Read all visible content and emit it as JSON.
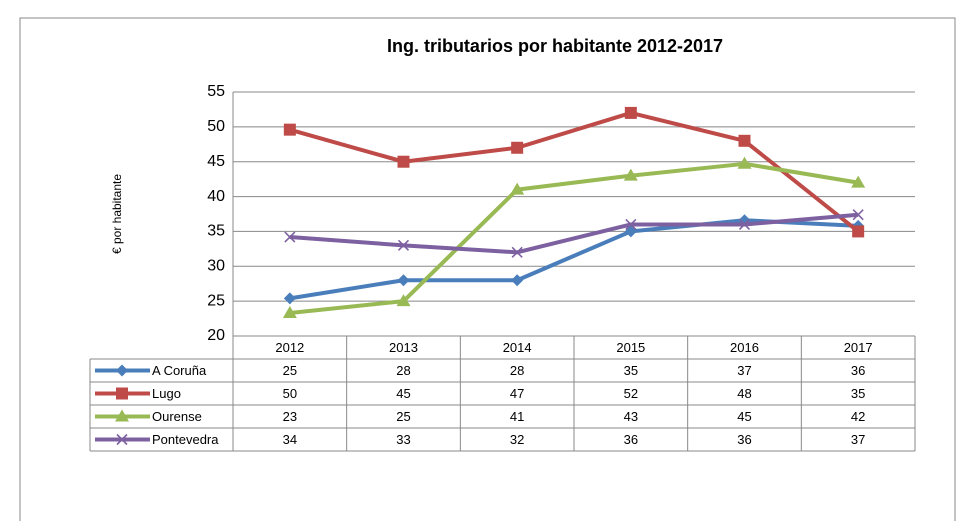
{
  "chart_data": {
    "type": "line",
    "title": "Ing. tributarios por habitante 2012-2017",
    "y_label": "€ por habitante",
    "categories": [
      "2012",
      "2013",
      "2014",
      "2015",
      "2016",
      "2017"
    ],
    "series": [
      {
        "name": "A Coruña",
        "color": "#4a7ebb",
        "marker": "diamond",
        "values": [
          25.4,
          28,
          28,
          35,
          36.6,
          35.8
        ],
        "value_labels": [
          "25",
          "28",
          "28",
          "35",
          "37",
          "36"
        ]
      },
      {
        "name": "Lugo",
        "color": "#be4b48",
        "marker": "square",
        "values": [
          49.6,
          45,
          47,
          52,
          48,
          35
        ],
        "value_labels": [
          "50",
          "45",
          "47",
          "52",
          "48",
          "35"
        ]
      },
      {
        "name": "Ourense",
        "color": "#98b954",
        "marker": "triangle",
        "values": [
          23.3,
          25,
          41,
          43,
          44.7,
          42
        ],
        "value_labels": [
          "23",
          "25",
          "41",
          "43",
          "45",
          "42"
        ]
      },
      {
        "name": "Pontevedra",
        "color": "#7d60a0",
        "marker": "x",
        "values": [
          34.2,
          33,
          32,
          36,
          36,
          37.4
        ],
        "value_labels": [
          "34",
          "33",
          "32",
          "36",
          "36",
          "37"
        ]
      }
    ],
    "ylim": [
      20,
      55
    ],
    "yticks": [
      20,
      25,
      30,
      35,
      40,
      45,
      50,
      55
    ],
    "grid": true
  }
}
